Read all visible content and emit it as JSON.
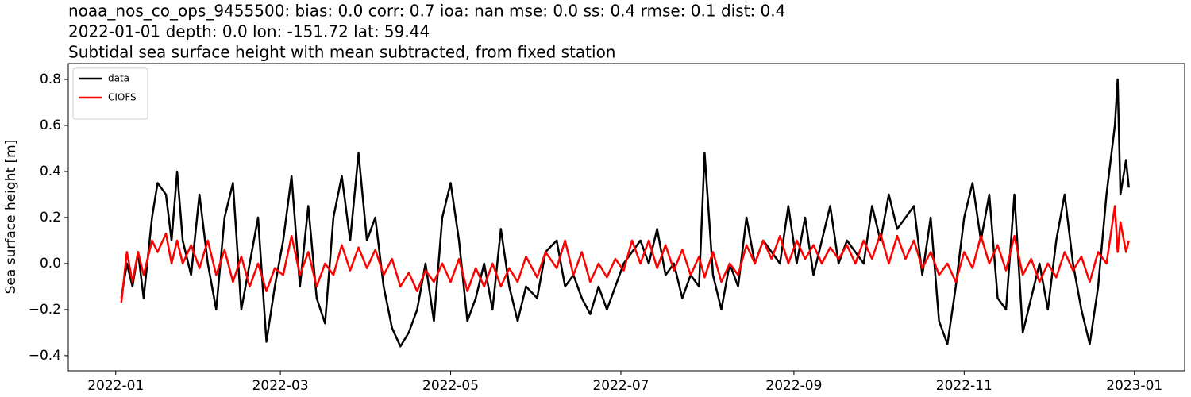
{
  "chart_data": {
    "type": "line",
    "title": [
      "noaa_nos_co_ops_9455500: bias: 0.0  corr: 0.7  ioa: nan  mse: 0.0  ss: 0.4  rmse: 0.1  dist: 0.4",
      "2022-01-01 depth: 0.0 lon: -151.72 lat: 59.44",
      "Subtidal sea surface height with mean subtracted, from fixed station"
    ],
    "ylabel": "Sea surface height [m]",
    "legend": "upper left",
    "xlim": [
      "2021-12-15",
      "2023-01-19"
    ],
    "xticks": [
      {
        "value": "2022-01-01",
        "label": "2022-01"
      },
      {
        "value": "2022-03-01",
        "label": "2022-03"
      },
      {
        "value": "2022-05-01",
        "label": "2022-05"
      },
      {
        "value": "2022-07-01",
        "label": "2022-07"
      },
      {
        "value": "2022-09-01",
        "label": "2022-09"
      },
      {
        "value": "2022-11-01",
        "label": "2022-11"
      },
      {
        "value": "2023-01-01",
        "label": "2023-01"
      }
    ],
    "ylim": [
      -0.466,
      0.869
    ],
    "yticks": [
      {
        "value": -0.4,
        "label": "−0.4"
      },
      {
        "value": -0.2,
        "label": "−0.2"
      },
      {
        "value": 0.0,
        "label": "0.0"
      },
      {
        "value": 0.2,
        "label": "0.2"
      },
      {
        "value": 0.4,
        "label": "0.4"
      },
      {
        "value": 0.6,
        "label": "0.6"
      },
      {
        "value": 0.8,
        "label": "0.8"
      }
    ],
    "x": [
      "2022-01-03",
      "2022-01-05",
      "2022-01-07",
      "2022-01-09",
      "2022-01-11",
      "2022-01-14",
      "2022-01-16",
      "2022-01-19",
      "2022-01-21",
      "2022-01-23",
      "2022-01-25",
      "2022-01-28",
      "2022-01-31",
      "2022-02-03",
      "2022-02-06",
      "2022-02-09",
      "2022-02-12",
      "2022-02-15",
      "2022-02-18",
      "2022-02-21",
      "2022-02-24",
      "2022-02-27",
      "2022-03-02",
      "2022-03-05",
      "2022-03-08",
      "2022-03-11",
      "2022-03-14",
      "2022-03-17",
      "2022-03-20",
      "2022-03-23",
      "2022-03-26",
      "2022-03-29",
      "2022-04-01",
      "2022-04-04",
      "2022-04-07",
      "2022-04-10",
      "2022-04-13",
      "2022-04-16",
      "2022-04-19",
      "2022-04-22",
      "2022-04-25",
      "2022-04-28",
      "2022-05-01",
      "2022-05-04",
      "2022-05-07",
      "2022-05-10",
      "2022-05-13",
      "2022-05-16",
      "2022-05-19",
      "2022-05-22",
      "2022-05-25",
      "2022-05-28",
      "2022-06-01",
      "2022-06-04",
      "2022-06-08",
      "2022-06-11",
      "2022-06-14",
      "2022-06-17",
      "2022-06-20",
      "2022-06-23",
      "2022-06-26",
      "2022-06-29",
      "2022-07-02",
      "2022-07-05",
      "2022-07-08",
      "2022-07-11",
      "2022-07-14",
      "2022-07-17",
      "2022-07-20",
      "2022-07-23",
      "2022-07-26",
      "2022-07-29",
      "2022-07-31",
      "2022-08-03",
      "2022-08-06",
      "2022-08-09",
      "2022-08-12",
      "2022-08-15",
      "2022-08-18",
      "2022-08-21",
      "2022-08-24",
      "2022-08-27",
      "2022-08-30",
      "2022-09-02",
      "2022-09-05",
      "2022-09-08",
      "2022-09-11",
      "2022-09-14",
      "2022-09-17",
      "2022-09-20",
      "2022-09-23",
      "2022-09-26",
      "2022-09-29",
      "2022-10-02",
      "2022-10-05",
      "2022-10-08",
      "2022-10-11",
      "2022-10-14",
      "2022-10-17",
      "2022-10-20",
      "2022-10-23",
      "2022-10-26",
      "2022-10-29",
      "2022-11-01",
      "2022-11-04",
      "2022-11-07",
      "2022-11-10",
      "2022-11-13",
      "2022-11-16",
      "2022-11-19",
      "2022-11-22",
      "2022-11-25",
      "2022-11-28",
      "2022-12-01",
      "2022-12-04",
      "2022-12-07",
      "2022-12-10",
      "2022-12-13",
      "2022-12-16",
      "2022-12-19",
      "2022-12-22",
      "2022-12-25",
      "2022-12-26",
      "2022-12-27",
      "2022-12-29",
      "2022-12-30"
    ],
    "series": [
      {
        "name": "data",
        "color": "#000000",
        "values": [
          -0.15,
          0.0,
          -0.1,
          0.05,
          -0.15,
          0.2,
          0.35,
          0.3,
          0.1,
          0.4,
          0.1,
          -0.05,
          0.3,
          0.0,
          -0.2,
          0.2,
          0.35,
          -0.2,
          0.0,
          0.2,
          -0.34,
          -0.1,
          0.1,
          0.38,
          -0.1,
          0.25,
          -0.15,
          -0.26,
          0.2,
          0.38,
          0.1,
          0.48,
          0.1,
          0.2,
          -0.1,
          -0.28,
          -0.36,
          -0.3,
          -0.2,
          0.0,
          -0.25,
          0.2,
          0.35,
          0.1,
          -0.25,
          -0.15,
          0.0,
          -0.2,
          0.15,
          -0.1,
          -0.25,
          -0.1,
          -0.15,
          0.05,
          0.1,
          -0.1,
          -0.05,
          -0.15,
          -0.22,
          -0.1,
          -0.2,
          -0.1,
          0.0,
          0.05,
          0.1,
          0.0,
          0.15,
          -0.05,
          0.0,
          -0.15,
          -0.05,
          -0.1,
          0.48,
          -0.05,
          -0.2,
          0.0,
          -0.1,
          0.2,
          0.0,
          0.1,
          0.05,
          0.0,
          0.25,
          0.0,
          0.2,
          -0.05,
          0.1,
          0.25,
          0.0,
          0.1,
          0.05,
          0.0,
          0.25,
          0.1,
          0.3,
          0.15,
          0.2,
          0.25,
          -0.05,
          0.2,
          -0.25,
          -0.35,
          -0.1,
          0.2,
          0.35,
          0.1,
          0.3,
          -0.15,
          -0.2,
          0.3,
          -0.3,
          -0.15,
          0.0,
          -0.2,
          0.1,
          0.3,
          0.0,
          -0.2,
          -0.35,
          -0.1,
          0.3,
          0.6,
          0.8,
          0.3,
          0.45,
          0.33
        ]
      },
      {
        "name": "CIOFS",
        "color": "#ff0000",
        "values": [
          -0.17,
          0.05,
          -0.08,
          0.05,
          -0.05,
          0.1,
          0.05,
          0.13,
          0.0,
          0.1,
          0.0,
          0.08,
          -0.02,
          0.1,
          -0.05,
          0.06,
          -0.08,
          0.03,
          -0.1,
          0.0,
          -0.12,
          -0.02,
          -0.05,
          0.12,
          -0.05,
          0.05,
          -0.1,
          0.0,
          -0.05,
          0.08,
          -0.03,
          0.07,
          -0.02,
          0.06,
          -0.05,
          0.02,
          -0.1,
          -0.04,
          -0.12,
          -0.03,
          -0.08,
          0.0,
          -0.08,
          0.02,
          -0.12,
          -0.02,
          -0.1,
          0.0,
          -0.1,
          -0.02,
          -0.08,
          0.03,
          -0.06,
          0.05,
          -0.02,
          0.1,
          -0.05,
          0.05,
          -0.08,
          0.0,
          -0.06,
          0.02,
          -0.03,
          0.1,
          0.0,
          0.1,
          -0.02,
          0.08,
          -0.03,
          0.06,
          -0.05,
          0.03,
          -0.06,
          0.05,
          -0.08,
          0.0,
          -0.05,
          0.08,
          0.0,
          0.1,
          0.02,
          0.12,
          0.0,
          0.1,
          0.02,
          0.08,
          0.0,
          0.07,
          0.02,
          0.08,
          0.0,
          0.1,
          0.02,
          0.13,
          0.0,
          0.12,
          0.02,
          0.1,
          -0.02,
          0.05,
          -0.05,
          0.0,
          -0.08,
          0.05,
          -0.02,
          0.12,
          0.0,
          0.08,
          -0.03,
          0.12,
          -0.05,
          0.02,
          -0.08,
          0.0,
          -0.06,
          0.05,
          -0.03,
          0.03,
          -0.08,
          0.05,
          0.0,
          0.25,
          0.05,
          0.18,
          0.05,
          0.1
        ]
      }
    ]
  }
}
